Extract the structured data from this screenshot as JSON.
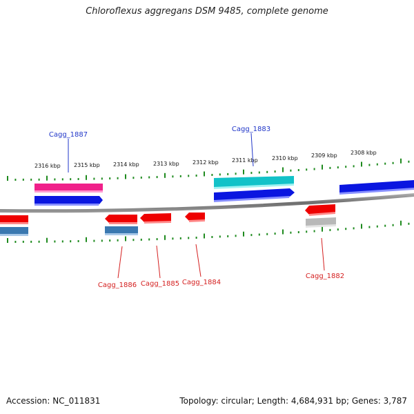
{
  "title": "Chloroflexus aggregans DSM 9485, complete genome",
  "colors": {
    "backbone": "#8a8a8a",
    "ticks": "#1e8a1e",
    "fwd_label": "#1f35c8",
    "rev_label": "#d41e1e",
    "red": "#ee0000",
    "blue": "#0a16e0",
    "magenta": "#f0208a",
    "cyan": "#12c2c8",
    "steelblue": "#3a78b0",
    "grey": "#b8b8b8"
  },
  "kbp_labels": [
    "2316 kbp",
    "2315 kbp",
    "2314 kbp",
    "2313 kbp",
    "2312 kbp",
    "2311 kbp",
    "2310 kbp",
    "2309 kbp",
    "2308 kbp"
  ],
  "forward_genes": [
    {
      "name": "Cagg_1887",
      "labeled": true
    },
    {
      "name": "Cagg_1883",
      "labeled": true
    }
  ],
  "reverse_genes": [
    {
      "name": "Cagg_1886"
    },
    {
      "name": "Cagg_1885"
    },
    {
      "name": "Cagg_1884"
    },
    {
      "name": "Cagg_1882"
    }
  ],
  "footer": {
    "accession": "Accession: NC_011831",
    "topology": "Topology: circular; Length: 4,684,931 bp; Genes: 3,787"
  }
}
